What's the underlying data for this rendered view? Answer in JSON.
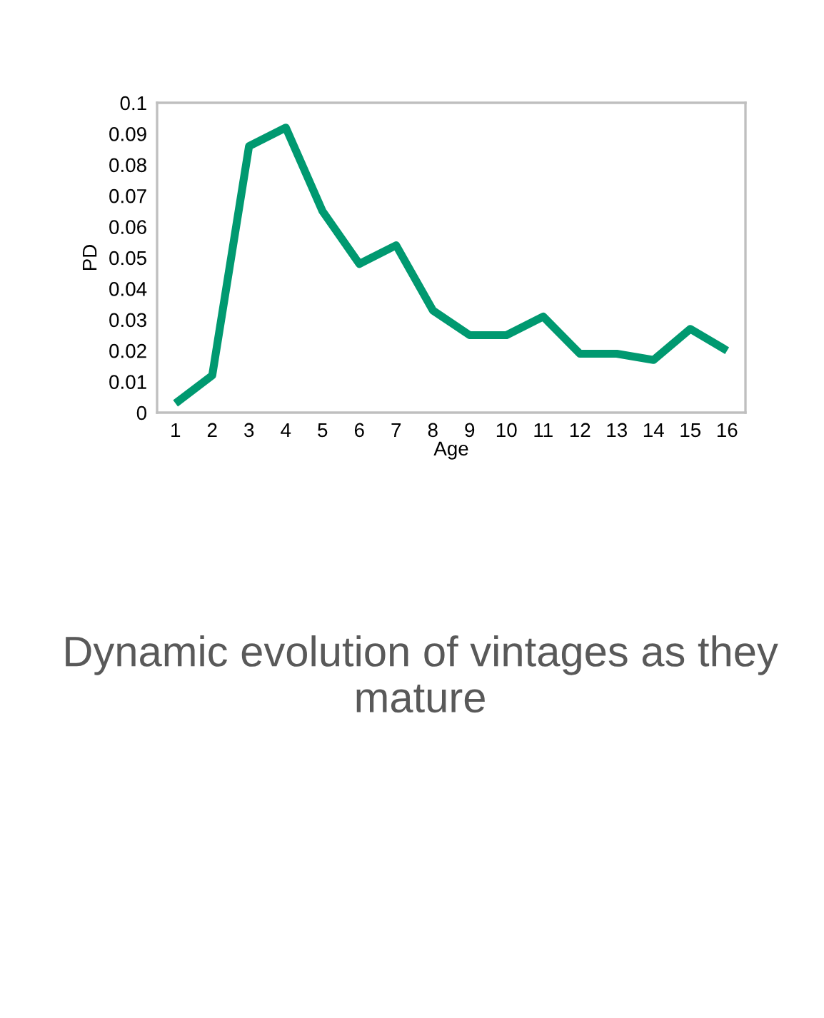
{
  "chart_data": {
    "type": "line",
    "title": "Dynamic evolution of vintages as they mature",
    "xlabel": "Age",
    "ylabel": "PD",
    "categories": [
      "1",
      "2",
      "3",
      "4",
      "5",
      "6",
      "7",
      "8",
      "9",
      "10",
      "11",
      "12",
      "13",
      "14",
      "15",
      "16"
    ],
    "series": [
      {
        "color": "#009970",
        "values": [
          0.003,
          0.012,
          0.086,
          0.092,
          0.065,
          0.048,
          0.054,
          0.033,
          0.025,
          0.025,
          0.031,
          0.019,
          0.019,
          0.017,
          0.027,
          0.02
        ]
      }
    ],
    "ylim": [
      0,
      0.1
    ],
    "yticks": [
      0,
      0.01,
      0.02,
      0.03,
      0.04,
      0.05,
      0.06,
      0.07,
      0.08,
      0.09,
      0.1
    ],
    "grid": false,
    "legend": false,
    "marker": "none",
    "line_style": "solid"
  }
}
